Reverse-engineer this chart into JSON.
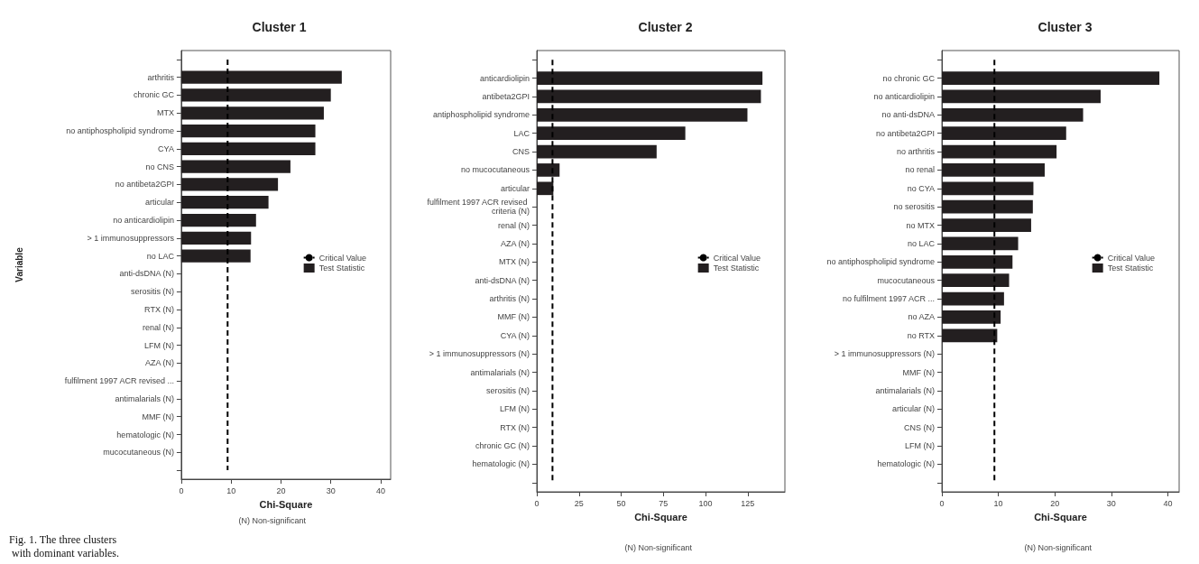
{
  "chart_data": [
    {
      "type": "bar",
      "orientation": "horizontal",
      "title": "Cluster 1",
      "xlabel": "Chi-Square",
      "ylabel": "Variable",
      "categories": [
        null,
        "arthritis",
        "chronic GC",
        "MTX",
        "no antiphospholipid syndrome",
        "CYA",
        "no CNS",
        "no antibeta2GPI",
        "articular",
        "no anticardiolipin",
        "> 1 immunosuppressors",
        "no LAC",
        "anti-dsDNA (N)",
        "serositis (N)",
        "RTX (N)",
        "renal (N)",
        "LFM (N)",
        "AZA (N)",
        "fulfilment 1997 ACR revised ...",
        "antimalarials (N)",
        "MMF (N)",
        "hematologic (N)",
        "mucocutaneous (N)",
        null
      ],
      "series": [
        {
          "name": "Critical Value",
          "type": "line",
          "color": "#000000",
          "line_style": "dashed",
          "marker": "none",
          "values": [
            9.3,
            9.3,
            9.3,
            9.3,
            9.3,
            9.3,
            9.3,
            9.3,
            9.3,
            9.3,
            9.3,
            9.3,
            9.3,
            9.3,
            9.3,
            9.3,
            9.3,
            9.3,
            9.3,
            9.3,
            9.3,
            9.3,
            9.3,
            9.3
          ]
        },
        {
          "name": "Test Statistic",
          "color": "#231f20",
          "values": [
            null,
            32.2,
            30.0,
            28.6,
            26.9,
            26.9,
            21.9,
            19.4,
            17.5,
            15.0,
            14.0,
            13.9,
            null,
            null,
            null,
            null,
            null,
            null,
            null,
            null,
            null,
            null,
            null,
            null
          ]
        }
      ],
      "xlim": [
        0,
        42
      ],
      "xticks": [
        0,
        10,
        20,
        30,
        40
      ],
      "legend": "right",
      "annotations": [
        "(N) Non-significant",
        "Fig. 1. The three clusters with dominant variables."
      ]
    },
    {
      "type": "bar",
      "orientation": "horizontal",
      "title": "Cluster 2",
      "xlabel": "Chi-Square",
      "categories": [
        null,
        "anticardiolipin",
        "antibeta2GPI",
        "antiphospholipid syndrome",
        "LAC",
        "CNS",
        "no mucocutaneous",
        "articular",
        "fulfilment 1997 ACR revised criteria (N)",
        "renal (N)",
        "AZA (N)",
        "MTX (N)",
        "anti-dsDNA (N)",
        "arthritis (N)",
        "MMF (N)",
        "CYA (N)",
        "> 1 immunosuppressors (N)",
        "antimalarials (N)",
        "serositis (N)",
        "LFM (N)",
        "RTX (N)",
        "chronic GC (N)",
        "hematologic (N)",
        null
      ],
      "series": [
        {
          "name": "Critical Value",
          "type": "line",
          "color": "#000000",
          "line_style": "dashed",
          "marker": "none",
          "values": [
            9.3,
            9.3,
            9.3,
            9.3,
            9.3,
            9.3,
            9.3,
            9.3,
            9.3,
            9.3,
            9.3,
            9.3,
            9.3,
            9.3,
            9.3,
            9.3,
            9.3,
            9.3,
            9.3,
            9.3,
            9.3,
            9.3,
            9.3,
            9.3
          ]
        },
        {
          "name": "Test Statistic",
          "color": "#231f20",
          "values": [
            null,
            133.7,
            132.8,
            124.8,
            88.0,
            71.0,
            13.5,
            9.8,
            null,
            null,
            null,
            null,
            null,
            null,
            null,
            null,
            null,
            null,
            null,
            null,
            null,
            null,
            null,
            null
          ]
        }
      ],
      "xlim": [
        0,
        147
      ],
      "xticks": [
        0,
        25,
        50,
        75,
        100,
        125
      ],
      "legend": "right",
      "annotations": [
        "(N) Non-significant"
      ]
    },
    {
      "type": "bar",
      "orientation": "horizontal",
      "title": "Cluster 3",
      "xlabel": "Chi-Square",
      "categories": [
        null,
        "no chronic GC",
        "no anticardiolipin",
        "no anti-dsDNA",
        "no antibeta2GPI",
        "no arthritis",
        "no renal",
        "no CYA",
        "no serositis",
        "no MTX",
        "no LAC",
        "no antiphospholipid syndrome",
        "mucocutaneous",
        "no fulfilment 1997 ACR ...",
        "no AZA",
        "no RTX",
        "> 1 immunosuppressors (N)",
        "MMF (N)",
        "antimalarials (N)",
        "articular (N)",
        "CNS (N)",
        "LFM (N)",
        "hematologic (N)",
        null
      ],
      "series": [
        {
          "name": "Critical Value",
          "type": "line",
          "color": "#000000",
          "line_style": "dashed",
          "marker": "none",
          "values": [
            9.3,
            9.3,
            9.3,
            9.3,
            9.3,
            9.3,
            9.3,
            9.3,
            9.3,
            9.3,
            9.3,
            9.3,
            9.3,
            9.3,
            9.3,
            9.3,
            9.3,
            9.3,
            9.3,
            9.3,
            9.3,
            9.3,
            9.3,
            9.3
          ]
        },
        {
          "name": "Test Statistic",
          "color": "#231f20",
          "values": [
            null,
            38.5,
            28.1,
            25.0,
            22.0,
            20.3,
            18.2,
            16.2,
            16.1,
            15.8,
            13.5,
            12.5,
            11.9,
            11.0,
            10.4,
            9.8,
            null,
            null,
            null,
            null,
            null,
            null,
            null,
            null
          ]
        }
      ],
      "xlim": [
        0,
        42
      ],
      "xticks": [
        0,
        10,
        20,
        30,
        40
      ],
      "legend": "right",
      "annotations": [
        "(N) Non-significant"
      ]
    }
  ]
}
